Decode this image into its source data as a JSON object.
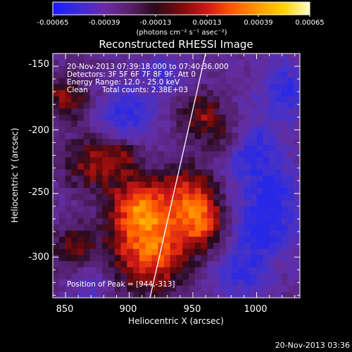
{
  "colorbar": {
    "ticks": [
      "-0.00065",
      "-0.00039",
      "-0.00013",
      "0.00013",
      "0.00039",
      "0.00065"
    ],
    "units_label": "(photons cm⁻² s⁻¹ asec⁻²)",
    "stops": [
      "#1a1aff",
      "#3b2bd8",
      "#6a2ba8",
      "#5a1f6a",
      "#2a0a1a",
      "#7a0a0a",
      "#d01818",
      "#ff5a00",
      "#ff9a00",
      "#ffd200",
      "#ffffcc"
    ]
  },
  "title": "Reconstructed RHESSI Image",
  "info": {
    "time_range": "20-Nov-2013 07:39:18.000 to 07:40:36.000",
    "detectors": "Detectors: 3F 5F 6F 7F 8F 9F, Att 0",
    "energy_range": "Energy Range: 12.0 - 25.0 keV",
    "clean": "Clean",
    "total_counts": "Total counts: 2.38E+03",
    "peak": "Position of Peak = [944,-313]"
  },
  "axes": {
    "xlabel": "Heliocentric X (arcsec)",
    "ylabel": "Heliocentric Y (arcsec)",
    "x_ticks": [
      "850",
      "900",
      "950",
      "1000"
    ],
    "y_ticks": [
      "-150",
      "-200",
      "-250",
      "-300"
    ],
    "x_tick_values": [
      850,
      900,
      950,
      1000
    ],
    "y_tick_values": [
      -150,
      -200,
      -250,
      -300
    ],
    "xlim": [
      840,
      1034
    ],
    "ylim": [
      -332,
      -140
    ]
  },
  "footer_timestamp": "20-Nov-2013 03:36"
}
